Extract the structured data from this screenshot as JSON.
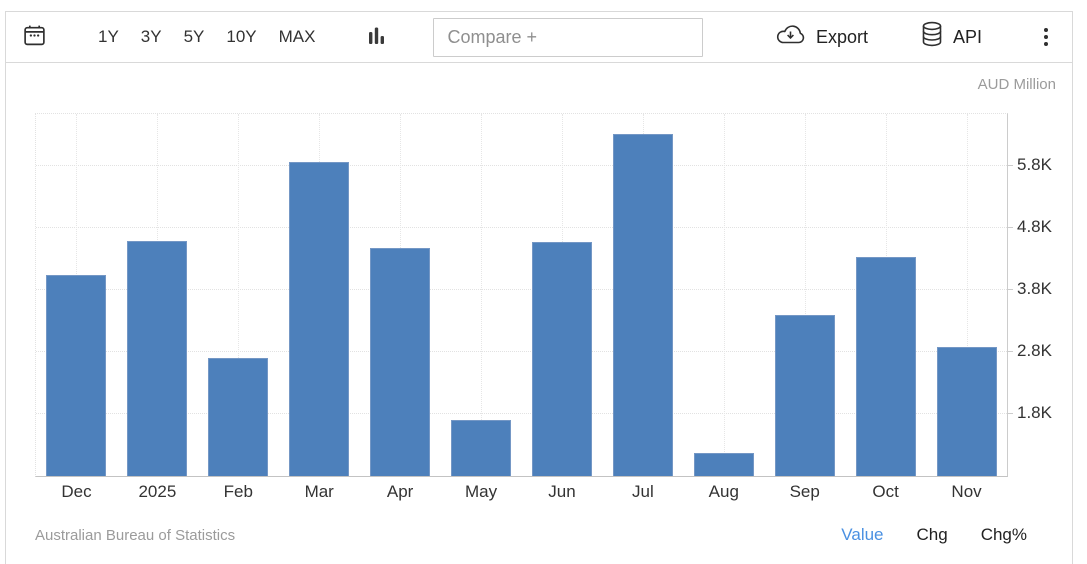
{
  "toolbar": {
    "range_buttons": [
      "1Y",
      "3Y",
      "5Y",
      "10Y",
      "MAX"
    ],
    "compare": {
      "placeholder": "Compare +",
      "value": ""
    },
    "export_label": "Export",
    "api_label": "API",
    "icons": {
      "left": "calendar-icon",
      "chart_type": "bar-chart-icon",
      "export": "cloud-download-icon",
      "api": "database-icon",
      "menu": "kebab-menu-icon"
    }
  },
  "chart": {
    "unit_label": "AUD Million",
    "source_attribution": "Australian Bureau of Statistics",
    "footer_tabs": [
      {
        "label": "Value",
        "active": true
      },
      {
        "label": "Chg",
        "active": false
      },
      {
        "label": "Chg%",
        "active": false
      }
    ]
  },
  "chart_data": {
    "type": "bar",
    "title": "",
    "xlabel": "",
    "ylabel": "AUD Million",
    "categories": [
      "Dec",
      "2025",
      "Feb",
      "Mar",
      "Apr",
      "May",
      "Jun",
      "Jul",
      "Aug",
      "Sep",
      "Oct",
      "Nov"
    ],
    "values": [
      4020,
      4570,
      2690,
      5850,
      4450,
      1680,
      4550,
      6300,
      1160,
      3380,
      4320,
      2860
    ],
    "y_ticks": [
      {
        "value": 1800,
        "label": "1.8K"
      },
      {
        "value": 2800,
        "label": "2.8K"
      },
      {
        "value": 3800,
        "label": "3.8K"
      },
      {
        "value": 4800,
        "label": "4.8K"
      },
      {
        "value": 5800,
        "label": "5.8K"
      }
    ],
    "ylim": [
      784,
      6616
    ],
    "grid": "dotted",
    "legend": "none",
    "yaxis_position": "right",
    "bar_color": "#4d80bb"
  },
  "colors": {
    "bar": "#4d80bb",
    "active_tab": "#4a90e2",
    "border": "#d9d9d9",
    "text": "#333333",
    "muted_text": "#9b9b9b"
  }
}
